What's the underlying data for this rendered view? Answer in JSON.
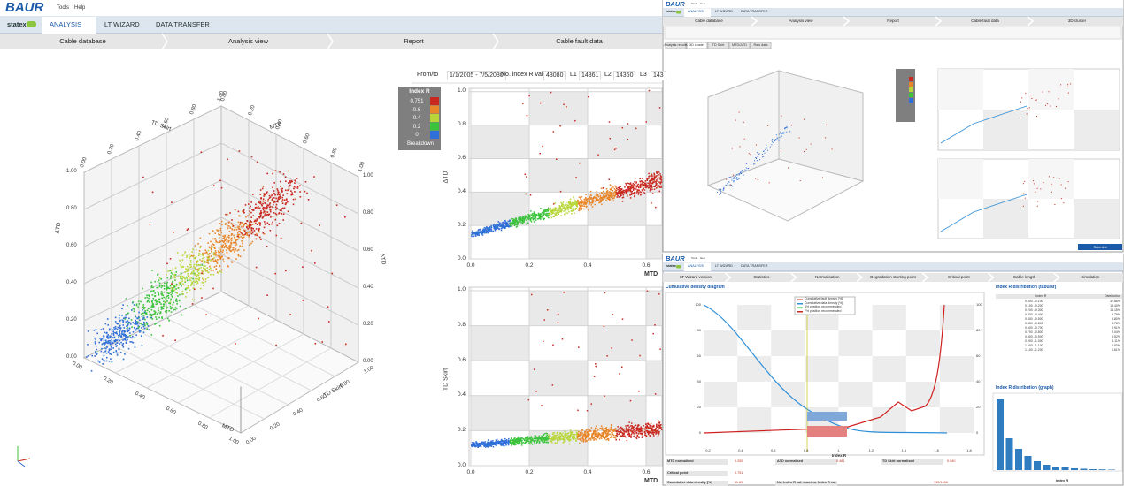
{
  "main": {
    "logo": "BAUR",
    "menu": [
      "Tools",
      "Help"
    ],
    "tabs": [
      "statex",
      "ANALYSIS",
      "LT WIZARD",
      "DATA TRANSFER"
    ],
    "steps": [
      "Cable database",
      "Analysis view",
      "Report",
      "Cable fault data"
    ],
    "filter": [
      {
        "label": "From/to",
        "value": "1/1/2005 - 7/5/2030"
      },
      {
        "label": "No. index R val.",
        "value": "43080"
      },
      {
        "label": "L1",
        "value": "14361"
      },
      {
        "label": "L2",
        "value": "14360"
      },
      {
        "label": "L3",
        "value": "143"
      }
    ],
    "legend": {
      "title": "Index R",
      "items": [
        "0.751",
        "0.6",
        "0.4",
        "0.2",
        "0",
        "Breakdown"
      ]
    },
    "plot3d": {
      "ticks": [
        "0.00",
        "0.20",
        "0.40",
        "0.60",
        "0.80",
        "1.00"
      ],
      "axis_labels": [
        "TD Skirt",
        "MTD",
        "ΔTD"
      ]
    },
    "plot_top": {
      "yticks": [
        "0.0",
        "0.2",
        "0.4",
        "0.6",
        "0.8",
        "1.0"
      ],
      "xticks": [
        "0.0",
        "0.2",
        "0.4",
        "0.6"
      ],
      "ylabel": "ΔTD",
      "xlabel": "MTD"
    },
    "plot_bottom": {
      "yticks": [
        "0.0",
        "0.2",
        "0.4",
        "0.6",
        "0.8",
        "1.0"
      ],
      "xticks": [
        "0.0",
        "0.2",
        "0.4",
        "0.6"
      ],
      "ylabel": "TD Skirt",
      "xlabel": "MTD"
    }
  },
  "analysis_window": {
    "logo": "BAUR",
    "menu": [
      "Tools",
      "Help"
    ],
    "tabs": [
      "statex",
      "ANALYSIS",
      "LT WIZARD",
      "DATA TRANSFER"
    ],
    "steps": [
      "Cable database",
      "Analysis view",
      "Report",
      "Cable fault data",
      "3D cluster"
    ],
    "subtabs": [
      "Analysis results",
      "3D cluster",
      "TD Skirt",
      "MTD/ΔTD",
      "Raw data"
    ],
    "button": "Scientist"
  },
  "wizard_window": {
    "logo": "BAUR",
    "menu": [
      "Tools",
      "Help"
    ],
    "tabs": [
      "statex",
      "ANALYSIS",
      "LT WIZARD",
      "DATA TRANSFER"
    ],
    "steps": [
      "LT Wizard version",
      "Statistics",
      "Normalisation",
      "Degradation starting point",
      "Critical point",
      "Cable length",
      "Simulation"
    ],
    "chart_title": "Cumulative density diagram",
    "legend": [
      "Cumulative fault density [%]",
      "Cumulative data density [%]",
      "4% position recommended",
      "7% position recommended"
    ],
    "yticks": [
      "0",
      "20",
      "40",
      "60",
      "80",
      "100"
    ],
    "xticks": [
      "0.2",
      "0.4",
      "0.6",
      "0.8",
      "1",
      "1.2",
      "1.4",
      "1.6",
      "1.8"
    ],
    "xlabel": "Index R",
    "table_title": "Index R distribution (tabular)",
    "table_header": [
      "Index R",
      "Distribution"
    ],
    "table_rows": [
      [
        "0.000 - 0.100",
        "37.88%"
      ],
      [
        "0.100 - 0.200",
        "18.40%"
      ],
      [
        "0.200 - 0.300",
        "13.15%"
      ],
      [
        "0.300 - 0.400",
        "9.79%"
      ],
      [
        "0.400 - 0.500",
        "6.80%"
      ],
      [
        "0.500 - 0.600",
        "3.78%"
      ],
      [
        "0.600 - 0.700",
        "2.91%"
      ],
      [
        "0.700 - 0.800",
        "2.04%"
      ],
      [
        "0.800 - 0.900",
        "1.52%"
      ],
      [
        "0.900 - 1.000",
        "1.11%"
      ],
      [
        "1.000 - 1.100",
        "0.83%"
      ],
      [
        "1.100 - 1.200",
        "0.61%"
      ]
    ],
    "graph_title": "Index R distribution (graph)",
    "graph_xlabel": "Index R",
    "fields": [
      {
        "label": "MTD normalised",
        "value": "0.255"
      },
      {
        "label": "ΔTD normalised",
        "value": "0.481"
      },
      {
        "label": "TD Skirt normalised",
        "value": "0.540"
      },
      {
        "label": "Critical point",
        "value": "0.751"
      },
      {
        "label": "Cumulative data density [%]",
        "value": "11.89"
      },
      {
        "label": "No. Index R val. cum./no. Index R val.",
        "value": "735/1466"
      }
    ]
  }
}
